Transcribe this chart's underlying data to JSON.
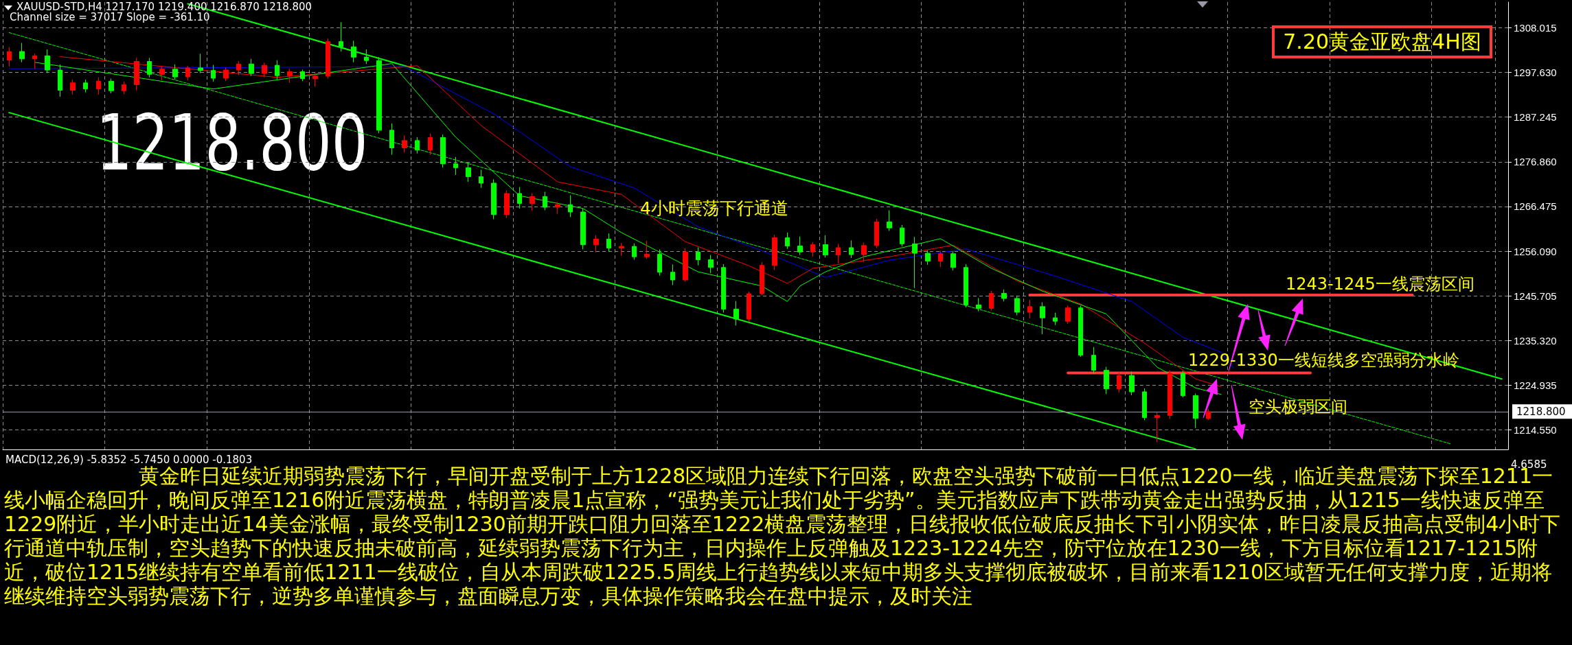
{
  "chart_data": {
    "type": "candlestick",
    "title": "7.20黄金亚欧盘4H图",
    "annotations": [
      "XAUUSD-STD,H4  1217.170 1219.400 1216.870 1218.800",
      "Channel size = 37017 Slope = -361.10",
      "1218.800",
      "4小时震荡下行通道",
      "1243-1245一线震荡区间",
      "1229-1330一线短线多空强弱分水岭",
      "空头极弱区间",
      "MACD(12,26,9) -5.8352 -5.7450 0.0000 -0.1803",
      "4.6585",
      "黄金昨日延续近期弱势震荡下行，早间开盘受制于上方1228区域阻力连续下行回落，欧盘空头强势下破前一日低点1220一线，临近美盘震荡下探至1211一线小幅企稳回升，晚间反弹至1216附近震荡横盘，特朗普凌晨1点宣称，“强势美元让我们处于劣势”。美元指数应声下跌带动黄金走出强势反抽，从1215一线快速反弹至1229附近，半小时走出近14美金涨幅，最终受制1230前期开跌口阻力回落至1222横盘震荡整理，日线报收低位破底反抽长下引小阴实体，昨日凌晨反抽高点受制4小时下行通道中轨压制，空头趋势下的快速反抽未破前高，延续弱势震荡下行为主，日内操作上反弹触及1223-1224先空，防守位放在1230一线，下方目标位看1217-1215附近，破位1215继续持有空单看前低1211一线破位，自从本周跌破1225.5周线上行趋势线以来短中期多头支撑彻底被破坏，目前来看1210区域暂无任何支撑力度，近期将继续维持空头弱势震荡下行，逆势多单谨慎参与，盘面瞬息万变，具体操作策略我会在盘中提示，及时关注"
    ],
    "categories": [
      null,
      null,
      null,
      null,
      null,
      null,
      null,
      null,
      null,
      null,
      null,
      null,
      null,
      null,
      null,
      null,
      null,
      null,
      null,
      null,
      null,
      null,
      null,
      null,
      null,
      null,
      null,
      null,
      null,
      null,
      null,
      null,
      null,
      null,
      null,
      null,
      null,
      null,
      null,
      null,
      null,
      null,
      null,
      null,
      null,
      null,
      null,
      null,
      null,
      null,
      null,
      null,
      null,
      null,
      null,
      null,
      null,
      null,
      null,
      null,
      null,
      null,
      null,
      null,
      null,
      null,
      null,
      null,
      null,
      null,
      null,
      null,
      null,
      null,
      null,
      null,
      null,
      null,
      null,
      null,
      null,
      null,
      null,
      null,
      null,
      null,
      null,
      null,
      null,
      null,
      null,
      null,
      null,
      null,
      null,
      null,
      null,
      null,
      null,
      null,
      null,
      null,
      null,
      null,
      null,
      null,
      null,
      null,
      null,
      null,
      null,
      null,
      null,
      null,
      null,
      null,
      null,
      null
    ],
    "ohlc": [
      [
        1300.5,
        1303.5,
        1299,
        1302.5
      ],
      [
        1302.5,
        1304.5,
        1300,
        1300.8
      ],
      [
        1300.8,
        1302,
        1298.5,
        1301.5
      ],
      [
        1301.5,
        1303,
        1297.5,
        1298.2
      ],
      [
        1298.2,
        1299.5,
        1292,
        1293.5
      ],
      [
        1293.5,
        1296,
        1292.5,
        1295.2
      ],
      [
        1295.2,
        1296,
        1293,
        1293.8
      ],
      [
        1293.8,
        1296.5,
        1292.5,
        1295.6
      ],
      [
        1295.6,
        1296.2,
        1292.8,
        1293.4
      ],
      [
        1293.4,
        1295.5,
        1292.6,
        1294.8
      ],
      [
        1294.8,
        1301,
        1293.5,
        1300.2
      ],
      [
        1300.2,
        1301,
        1296.5,
        1297.2
      ],
      [
        1297.2,
        1299,
        1295.8,
        1298.4
      ],
      [
        1298.4,
        1299.5,
        1296,
        1296.6
      ],
      [
        1296.6,
        1299.2,
        1295.8,
        1298.7
      ],
      [
        1298.7,
        1302,
        1297.5,
        1298.1
      ],
      [
        1298.1,
        1299.4,
        1295.5,
        1296.3
      ],
      [
        1296.3,
        1298.8,
        1295.6,
        1298.2
      ],
      [
        1298.2,
        1300.3,
        1297,
        1299.6
      ],
      [
        1299.6,
        1300.8,
        1296.8,
        1297.4
      ],
      [
        1297.4,
        1299.9,
        1296.5,
        1299.3
      ],
      [
        1299.3,
        1300.5,
        1296,
        1296.9
      ],
      [
        1296.9,
        1298.5,
        1295.2,
        1297.8
      ],
      [
        1297.8,
        1298.3,
        1295.6,
        1296.2
      ],
      [
        1296.2,
        1297.6,
        1294.3,
        1296.8
      ],
      [
        1296.8,
        1305.5,
        1296.2,
        1304.8
      ],
      [
        1304.8,
        1309.3,
        1302.5,
        1303.6
      ],
      [
        1303.6,
        1305,
        1300,
        1301.2
      ],
      [
        1301.2,
        1303,
        1299.6,
        1300.4
      ],
      [
        1300.4,
        1301.2,
        1283.5,
        1284.2
      ],
      [
        1284.2,
        1285.8,
        1278.5,
        1280.1
      ],
      [
        1280.1,
        1283,
        1279,
        1281.8
      ],
      [
        1281.8,
        1282.6,
        1278.8,
        1279.6
      ],
      [
        1279.6,
        1283.4,
        1278.5,
        1282.5
      ],
      [
        1282.5,
        1283.2,
        1275.5,
        1276.4
      ],
      [
        1276.4,
        1278,
        1273.8,
        1275.5
      ],
      [
        1275.5,
        1276.8,
        1272.2,
        1273.4
      ],
      [
        1273.4,
        1275,
        1270.8,
        1271.9
      ],
      [
        1271.9,
        1272.8,
        1263.5,
        1264.6
      ],
      [
        1264.6,
        1270.2,
        1263.8,
        1269.5
      ],
      [
        1269.5,
        1271,
        1266,
        1267.2
      ],
      [
        1267.2,
        1269.6,
        1265.5,
        1268.8
      ],
      [
        1268.8,
        1269.9,
        1265.6,
        1266.3
      ],
      [
        1266.3,
        1267.5,
        1264.8,
        1266.9
      ],
      [
        1266.9,
        1269.1,
        1264,
        1265.2
      ],
      [
        1265.2,
        1266,
        1256.5,
        1257.6
      ],
      [
        1257.6,
        1259.8,
        1255.8,
        1258.9
      ],
      [
        1258.9,
        1260.2,
        1256,
        1256.8
      ],
      [
        1256.8,
        1258,
        1255,
        1257.2
      ],
      [
        1257.2,
        1257.9,
        1254.1,
        1254.8
      ],
      [
        1254.8,
        1258.5,
        1254.3,
        1255.4
      ],
      [
        1255.4,
        1256.5,
        1250.4,
        1251.2
      ],
      [
        1251.2,
        1253,
        1248.2,
        1249.4
      ],
      [
        1249.4,
        1256.8,
        1249,
        1255.9
      ],
      [
        1255.9,
        1257,
        1252.8,
        1254.1
      ],
      [
        1254.1,
        1255.2,
        1251,
        1252.3
      ],
      [
        1252.3,
        1253.1,
        1241.8,
        1242.6
      ],
      [
        1242.6,
        1244.5,
        1238.8,
        1240.3
      ],
      [
        1240.3,
        1246.7,
        1239.6,
        1246.2
      ],
      [
        1246.2,
        1253.5,
        1245.8,
        1252.8
      ],
      [
        1252.8,
        1259.9,
        1251.7,
        1259.2
      ],
      [
        1259.2,
        1260.4,
        1256.6,
        1257.3
      ],
      [
        1257.3,
        1259.5,
        1255.2,
        1255.9
      ],
      [
        1255.9,
        1258.2,
        1254.8,
        1257.6
      ],
      [
        1257.6,
        1259.8,
        1254.6,
        1255.2
      ],
      [
        1255.2,
        1257.8,
        1253.2,
        1256.9
      ],
      [
        1256.9,
        1258.6,
        1254.5,
        1255.3
      ],
      [
        1255.3,
        1258.1,
        1253.5,
        1257.4
      ],
      [
        1257.4,
        1263.6,
        1256.8,
        1262.9
      ],
      [
        1262.9,
        1265.6,
        1260.8,
        1261.5
      ],
      [
        1261.5,
        1262.2,
        1257.2,
        1257.8
      ],
      [
        1257.8,
        1259.4,
        1247.5,
        1255.6
      ],
      [
        1255.6,
        1256.3,
        1252.9,
        1253.8
      ],
      [
        1253.8,
        1256.2,
        1252.4,
        1255.5
      ],
      [
        1255.5,
        1256.1,
        1251.6,
        1252.3
      ],
      [
        1252.3,
        1253.1,
        1243,
        1243.6
      ],
      [
        1243.6,
        1245.2,
        1242.1,
        1242.8
      ],
      [
        1242.8,
        1246.9,
        1242.3,
        1246.3
      ],
      [
        1246.3,
        1247.2,
        1244.4,
        1245.1
      ],
      [
        1245.1,
        1245.8,
        1241.2,
        1241.9
      ],
      [
        1241.9,
        1244.8,
        1240.5,
        1243.2
      ],
      [
        1243.2,
        1244.2,
        1236.8,
        1240.6
      ],
      [
        1240.6,
        1241.8,
        1238.9,
        1239.8
      ],
      [
        1239.8,
        1243.5,
        1239.2,
        1242.9
      ],
      [
        1242.9,
        1243.4,
        1231.5,
        1231.9
      ],
      [
        1231.9,
        1233.8,
        1227.6,
        1228.4
      ],
      [
        1228.4,
        1229.2,
        1222.9,
        1224.1
      ],
      [
        1224.1,
        1227.9,
        1223.2,
        1227.2
      ],
      [
        1227.2,
        1228.1,
        1222.6,
        1223.4
      ],
      [
        1223.4,
        1224.2,
        1216.8,
        1217.4
      ],
      [
        1217.4,
        1218.6,
        1211.7,
        1217.9
      ],
      [
        1217.9,
        1228.4,
        1217.1,
        1227.7
      ],
      [
        1227.7,
        1228.3,
        1222.1,
        1222.5
      ],
      [
        1222.5,
        1223,
        1215,
        1217.2
      ],
      [
        1217.17,
        1219.4,
        1216.87,
        1218.8
      ],
      null,
      null,
      null,
      null,
      null,
      null,
      null,
      null,
      null,
      null,
      null,
      null,
      null,
      null,
      null,
      null,
      null,
      null,
      null,
      null,
      null,
      null,
      null
    ],
    "colors": [
      "#ff0000",
      "#00ff00",
      "#ff0000",
      "#00ff00",
      "#00ff00",
      "#ff0000",
      "#00ff00",
      "#ff0000",
      "#00ff00",
      "#ff0000",
      "#ff0000",
      "#00ff00",
      "#ff0000",
      "#00ff00",
      "#ff0000",
      "#00ff00",
      "#00ff00",
      "#ff0000",
      "#ff0000",
      "#00ff00",
      "#ff0000",
      "#00ff00",
      "#ff0000",
      "#00ff00",
      "#ff0000",
      "#ff0000",
      "#00ff00",
      "#00ff00",
      "#00ff00",
      "#00ff00",
      "#00ff00",
      "#ff0000",
      "#00ff00",
      "#ff0000",
      "#00ff00",
      "#00ff00",
      "#00ff00",
      "#00ff00",
      "#00ff00",
      "#ff0000",
      "#00ff00",
      "#ff0000",
      "#00ff00",
      "#ff0000",
      "#00ff00",
      "#00ff00",
      "#ff0000",
      "#00ff00",
      "#ff0000",
      "#00ff00",
      "#ff0000",
      "#00ff00",
      "#00ff00",
      "#ff0000",
      "#00ff00",
      "#00ff00",
      "#00ff00",
      "#00ff00",
      "#ff0000",
      "#ff0000",
      "#ff0000",
      "#00ff00",
      "#00ff00",
      "#ff0000",
      "#00ff00",
      "#ff0000",
      "#00ff00",
      "#ff0000",
      "#ff0000",
      "#00ff00",
      "#00ff00",
      "#00ff00",
      "#00ff00",
      "#ff0000",
      "#00ff00",
      "#00ff00",
      "#00ff00",
      "#ff0000",
      "#00ff00",
      "#00ff00",
      "#ff0000",
      "#00ff00",
      "#00ff00",
      "#ff0000",
      "#00ff00",
      "#00ff00",
      "#00ff00",
      "#ff0000",
      "#00ff00",
      "#00ff00",
      "#ff0000",
      "#ff0000",
      "#00ff00",
      "#00ff00",
      "#ff0000",
      null,
      null,
      null,
      null,
      null,
      null,
      null,
      null,
      null,
      null,
      null,
      null,
      null,
      null,
      null,
      null,
      null,
      null,
      null,
      null,
      null,
      null,
      null
    ],
    "series": [
      {
        "type": "line",
        "color": "#00ff00",
        "values": [
          null,
          null,
          null,
          null,
          null,
          null,
          null,
          null,
          null,
          null,
          null,
          null,
          null,
          null,
          1313.6,
          null,
          null,
          null,
          null,
          null,
          null,
          null,
          null,
          null,
          null,
          null,
          null,
          null,
          null,
          null,
          null,
          null,
          null,
          null,
          null,
          null,
          null,
          null,
          null,
          null,
          null,
          null,
          null,
          null,
          null,
          null,
          null,
          null,
          null,
          null,
          null,
          null,
          null,
          null,
          null,
          null,
          null,
          null,
          null,
          null,
          null,
          null,
          null,
          null,
          null,
          null,
          null,
          null,
          null,
          null,
          null,
          null,
          null,
          null,
          null,
          null,
          null,
          null,
          null,
          null,
          null,
          null,
          null,
          null,
          null,
          null,
          null,
          null,
          null,
          null,
          null,
          null,
          null,
          null,
          null,
          null,
          null,
          null,
          null,
          null,
          null,
          null,
          null,
          null,
          null,
          null,
          null,
          null,
          null,
          null,
          null,
          null,
          null,
          null,
          null,
          null,
          null,
          1226.4
        ]
      },
      {
        "type": "line",
        "color": "#00ff00",
        "values": [
          1288.3,
          null,
          null,
          null,
          null,
          null,
          null,
          null,
          null,
          null,
          null,
          null,
          null,
          null,
          null,
          null,
          null,
          null,
          null,
          null,
          null,
          null,
          null,
          null,
          null,
          null,
          null,
          null,
          null,
          null,
          null,
          null,
          null,
          null,
          null,
          null,
          null,
          null,
          null,
          null,
          null,
          null,
          null,
          null,
          null,
          null,
          null,
          null,
          null,
          null,
          null,
          null,
          null,
          null,
          null,
          null,
          null,
          null,
          null,
          null,
          null,
          null,
          null,
          null,
          null,
          null,
          null,
          null,
          null,
          null,
          null,
          null,
          null,
          null,
          null,
          null,
          null,
          null,
          null,
          null,
          null,
          null,
          null,
          null,
          null,
          null,
          null,
          null,
          null,
          null,
          null,
          null,
          null,
          1210.1,
          null,
          null,
          null,
          null,
          null,
          null,
          null,
          null,
          null,
          null,
          null,
          null,
          null,
          null,
          null,
          null,
          null,
          null,
          null,
          null,
          null,
          null,
          null,
          null
        ]
      },
      {
        "type": "line",
        "color": "#00ff00",
        "line_style": "dashed",
        "values": [
          1306.9,
          null,
          null,
          null,
          null,
          null,
          null,
          null,
          null,
          null,
          null,
          null,
          null,
          null,
          null,
          null,
          null,
          null,
          null,
          null,
          null,
          null,
          null,
          null,
          null,
          null,
          null,
          null,
          null,
          null,
          null,
          null,
          null,
          null,
          null,
          null,
          null,
          null,
          null,
          null,
          null,
          null,
          null,
          null,
          null,
          null,
          null,
          null,
          null,
          null,
          null,
          null,
          null,
          null,
          null,
          null,
          null,
          null,
          null,
          null,
          null,
          null,
          null,
          null,
          null,
          null,
          null,
          null,
          null,
          null,
          null,
          null,
          null,
          null,
          null,
          null,
          null,
          null,
          null,
          null,
          null,
          null,
          null,
          null,
          null,
          null,
          null,
          null,
          null,
          null,
          null,
          null,
          null,
          null,
          null,
          null,
          null,
          null,
          null,
          null,
          null,
          null,
          null,
          null,
          null,
          null,
          null,
          null,
          null,
          null,
          null,
          null,
          null,
          1211.3,
          null,
          null,
          null,
          null
        ]
      },
      {
        "type": "line",
        "color": "#ff3b3b",
        "values": [
          null,
          null,
          null,
          null,
          null,
          null,
          null,
          null,
          null,
          null,
          null,
          null,
          null,
          null,
          null,
          null,
          null,
          null,
          null,
          null,
          null,
          null,
          null,
          null,
          null,
          null,
          null,
          null,
          null,
          null,
          null,
          null,
          null,
          null,
          null,
          null,
          null,
          null,
          null,
          null,
          null,
          null,
          null,
          null,
          null,
          null,
          null,
          null,
          null,
          null,
          null,
          null,
          null,
          null,
          null,
          null,
          null,
          null,
          null,
          null,
          null,
          null,
          null,
          null,
          null,
          null,
          null,
          null,
          null,
          null,
          null,
          null,
          null,
          null,
          null,
          null,
          null,
          null,
          null,
          null,
          1245.9,
          null,
          null,
          null,
          null,
          null,
          null,
          null,
          null,
          null,
          null,
          null,
          null,
          null,
          null,
          null,
          null,
          null,
          null,
          null,
          null,
          null,
          null,
          null,
          null,
          null,
          null,
          null,
          null,
          null,
          1245.9,
          null,
          null,
          null,
          null,
          null,
          null,
          null
        ]
      },
      {
        "type": "line",
        "color": "#ff3b3b",
        "values": [
          null,
          null,
          null,
          null,
          null,
          null,
          null,
          null,
          null,
          null,
          null,
          null,
          null,
          null,
          null,
          null,
          null,
          null,
          null,
          null,
          null,
          null,
          null,
          null,
          null,
          null,
          null,
          null,
          null,
          null,
          null,
          null,
          null,
          null,
          null,
          null,
          null,
          null,
          null,
          null,
          null,
          null,
          null,
          null,
          null,
          null,
          null,
          null,
          null,
          null,
          null,
          null,
          null,
          null,
          null,
          null,
          null,
          null,
          null,
          null,
          null,
          null,
          null,
          null,
          null,
          null,
          null,
          null,
          null,
          null,
          null,
          null,
          null,
          null,
          null,
          null,
          null,
          null,
          null,
          null,
          null,
          null,
          null,
          1227.8,
          null,
          null,
          null,
          null,
          null,
          null,
          null,
          null,
          null,
          null,
          null,
          null,
          null,
          null,
          null,
          null,
          null,
          null,
          1227.8,
          null,
          null,
          null,
          null,
          null,
          null,
          null,
          null,
          null,
          null,
          null,
          null,
          null,
          null,
          null
        ]
      },
      {
        "type": "line",
        "color": "#0000ff",
        "values": [
          1298.5,
          null,
          null,
          null,
          null,
          null,
          null,
          null,
          null,
          null,
          null,
          null,
          null,
          null,
          null,
          null,
          null,
          null,
          null,
          null,
          null,
          null,
          null,
          null,
          null,
          null,
          null,
          null,
          null,
          null,
          null,
          1299,
          null,
          null,
          null,
          null,
          null,
          null,
          1288,
          null,
          null,
          null,
          null,
          null,
          1275.7,
          null,
          null,
          null,
          null,
          1270.8,
          null,
          null,
          null,
          null,
          1261.8,
          null,
          null,
          null,
          null,
          1256.2,
          null,
          null,
          null,
          null,
          1250,
          null,
          null,
          null,
          null,
          1254,
          null,
          null,
          null,
          null,
          null,
          1256.6,
          null,
          null,
          null,
          null,
          null,
          null,
          1250.3,
          null,
          null,
          null,
          null,
          null,
          1244.4,
          null,
          null,
          null,
          1236.1,
          null,
          null,
          1232.6,
          1228.8,
          null,
          null,
          null,
          null,
          null,
          null,
          null,
          null,
          null,
          null,
          null,
          null,
          null,
          null,
          null,
          null,
          null,
          null,
          null,
          null,
          null
        ]
      },
      {
        "type": "line",
        "color": "#ff0000",
        "values": [
          null,
          null,
          null,
          null,
          1301.3,
          null,
          null,
          null,
          null,
          null,
          null,
          null,
          null,
          null,
          null,
          null,
          null,
          null,
          null,
          null,
          null,
          1296.5,
          null,
          null,
          null,
          null,
          null,
          null,
          null,
          null,
          null,
          null,
          1299.2,
          null,
          null,
          null,
          null,
          1285.3,
          null,
          null,
          null,
          null,
          null,
          1272.2,
          null,
          null,
          null,
          null,
          1269.3,
          null,
          null,
          null,
          null,
          1258.3,
          null,
          null,
          null,
          null,
          1252.7,
          null,
          null,
          1248.6,
          null,
          1252.1,
          null,
          null,
          null,
          null,
          null,
          1254.8,
          null,
          null,
          null,
          null,
          1257.5,
          null,
          null,
          null,
          null,
          1249.2,
          null,
          null,
          null,
          null,
          1243.8,
          null,
          null,
          null,
          null,
          1234.7,
          null,
          null,
          null,
          1226.4,
          null,
          1224.6,
          null,
          null,
          null,
          null,
          null,
          null,
          null,
          null,
          null,
          null,
          null,
          null,
          null,
          null,
          null,
          null,
          null,
          null,
          null,
          null,
          null,
          null
        ]
      },
      {
        "type": "line",
        "color": "#00ff00",
        "values": [
          null,
          null,
          1300,
          null,
          null,
          null,
          null,
          null,
          null,
          null,
          null,
          null,
          null,
          null,
          null,
          null,
          1293.8,
          null,
          null,
          null,
          null,
          null,
          null,
          null,
          null,
          null,
          null,
          null,
          null,
          null,
          1299.7,
          null,
          null,
          null,
          null,
          1282.6,
          null,
          null,
          null,
          null,
          1269,
          null,
          null,
          null,
          null,
          1266,
          null,
          null,
          1260.4,
          null,
          null,
          null,
          null,
          null,
          1251.3,
          null,
          null,
          null,
          null,
          1248,
          null,
          1244.4,
          1248,
          null,
          1251.3,
          null,
          null,
          1254.8,
          null,
          null,
          null,
          null,
          null,
          1259,
          null,
          null,
          null,
          1252.1,
          null,
          null,
          null,
          1246.8,
          null,
          null,
          null,
          null,
          1241.5,
          null,
          null,
          null,
          1229.1,
          null,
          null,
          1224.3,
          null,
          1222.8,
          null,
          null,
          null,
          null,
          null,
          null,
          null,
          null,
          null,
          null,
          null,
          null,
          null,
          null,
          null,
          null,
          null,
          null,
          null,
          null,
          null,
          null
        ]
      }
    ],
    "ylim": [
      1210,
      1314
    ],
    "yticks": [
      {
        "value": 1214.55,
        "label": "1214.550"
      },
      {
        "value": 1224.935,
        "label": "1224.935"
      },
      {
        "value": 1235.32,
        "label": "1235.320"
      },
      {
        "value": 1245.705,
        "label": "1245.705"
      },
      {
        "value": 1256.09,
        "label": "1256.090"
      },
      {
        "value": 1266.475,
        "label": "1266.475"
      },
      {
        "value": 1276.86,
        "label": "1276.860"
      },
      {
        "value": 1287.245,
        "label": "1287.245"
      },
      {
        "value": 1297.63,
        "label": "1297.630"
      },
      {
        "value": 1308.015,
        "label": "1308.015"
      }
    ],
    "ref_lines": [
      {
        "axis": "y",
        "value": 1218.8,
        "label": "1218.800",
        "color": "#9a9aa8"
      }
    ],
    "grid": true,
    "tick_labels": "y"
  }
}
